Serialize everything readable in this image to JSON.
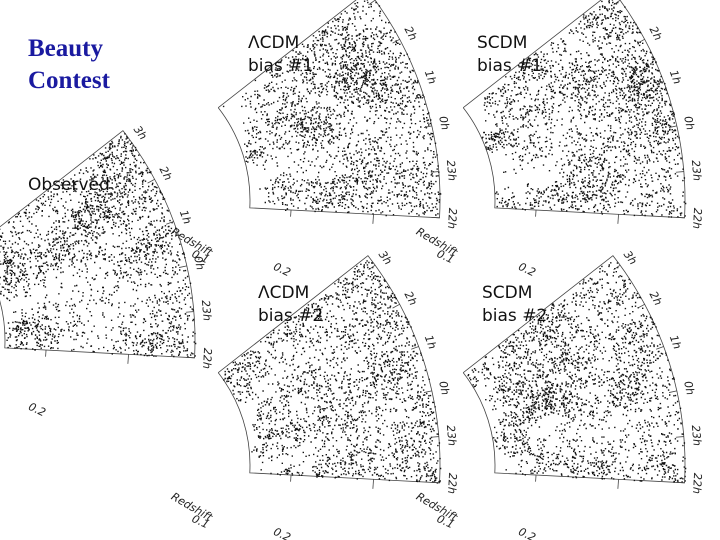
{
  "title_lines": [
    "Beauty",
    "Contest"
  ],
  "observed": {
    "label": "Observed"
  },
  "panels": [
    {
      "label_lines": [
        "ΛCDM",
        "bias #1"
      ]
    },
    {
      "label_lines": [
        "SCDM",
        "bias #1"
      ]
    },
    {
      "label_lines": [
        "ΛCDM",
        "bias #2"
      ]
    },
    {
      "label_lines": [
        "SCDM",
        "bias #2"
      ]
    }
  ],
  "redshift_axis": {
    "label": "Redshift",
    "ticks": [
      "0.1",
      "0.2"
    ]
  },
  "ra_labels": [
    "3h",
    "2h",
    "1h",
    "0h",
    "23h",
    "22h"
  ]
}
